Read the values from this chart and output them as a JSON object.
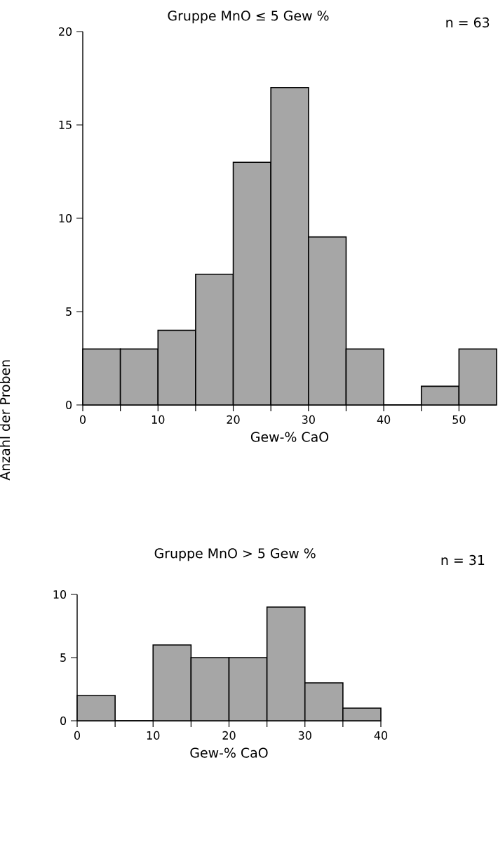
{
  "chart_data": [
    {
      "type": "histogram",
      "title": "Gruppe MnO ≤ 5 Gew %",
      "xlabel": "Gew-% CaO",
      "ylabel": "Anzahl der Proben",
      "annotations": [
        "n = 63"
      ],
      "bins": [
        0,
        5,
        10,
        15,
        20,
        25,
        30,
        35,
        40,
        45,
        50,
        55
      ],
      "values": [
        3,
        3,
        4,
        7,
        13,
        17,
        9,
        3,
        0,
        1,
        3
      ],
      "color": "#a6a6a6",
      "xlim": [
        0,
        55
      ],
      "ylim": [
        0,
        20
      ],
      "xticks": [
        0,
        {
          "value": 5,
          "label": null
        },
        10,
        {
          "value": 15,
          "label": null
        },
        20,
        {
          "value": 25,
          "label": null
        },
        30,
        {
          "value": 35,
          "label": null
        },
        40,
        {
          "value": 45,
          "label": null
        },
        50
      ],
      "yticks": [
        0,
        5,
        10,
        15,
        20
      ]
    },
    {
      "type": "histogram",
      "title": "Gruppe MnO > 5 Gew %",
      "xlabel": "Gew-% CaO",
      "annotations": [
        "n = 31"
      ],
      "bins": [
        0,
        5,
        10,
        15,
        20,
        25,
        30,
        35,
        40
      ],
      "values": [
        2,
        0,
        6,
        5,
        5,
        9,
        3,
        1
      ],
      "color": "#a6a6a6",
      "xlim": [
        0,
        40
      ],
      "ylim": [
        0,
        10
      ],
      "xticks": [
        0,
        {
          "value": 5,
          "label": null
        },
        10,
        {
          "value": 15,
          "label": null
        },
        20,
        {
          "value": 25,
          "label": null
        },
        30,
        {
          "value": 35,
          "label": null
        },
        40
      ],
      "yticks": [
        0,
        5,
        10
      ]
    }
  ]
}
